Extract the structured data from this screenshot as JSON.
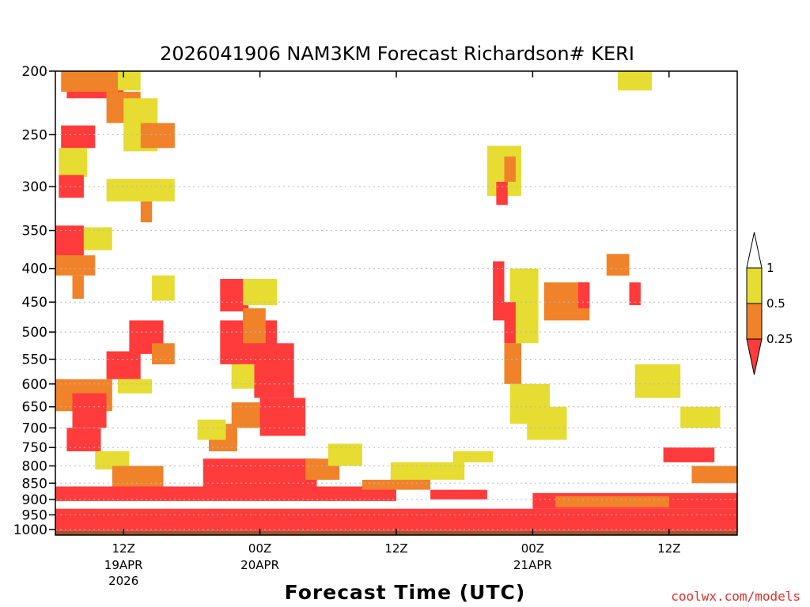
{
  "chart_data": {
    "type": "heatmap",
    "title": "2026041906 NAM3KM Forecast Richardson# KERI",
    "xlabel": "Forecast Time (UTC)",
    "credit": "coolwx.com/models",
    "y_axis": {
      "scale": "log",
      "reversed": true,
      "range": [
        200,
        1020
      ],
      "ticks": [
        200,
        250,
        300,
        350,
        400,
        450,
        500,
        550,
        600,
        650,
        700,
        750,
        800,
        850,
        900,
        950,
        1000
      ],
      "grid": "dotted"
    },
    "x_axis": {
      "range_hours_from_init": [
        0,
        60
      ],
      "ticks": [
        {
          "hour": 6,
          "label": "12Z",
          "date": "19APR",
          "year": "2026"
        },
        {
          "hour": 18,
          "label": "00Z",
          "date": "20APR",
          "year": ""
        },
        {
          "hour": 30,
          "label": "12Z",
          "date": "",
          "year": ""
        },
        {
          "hour": 42,
          "label": "00Z",
          "date": "21APR",
          "year": ""
        },
        {
          "hour": 54,
          "label": "12Z",
          "date": "",
          "year": ""
        }
      ]
    },
    "legend": {
      "placement": "right",
      "labels": [
        "1",
        "0.5",
        "0.25"
      ],
      "bins": [
        {
          "range": "< 0.25",
          "color": "#ff3b3b"
        },
        {
          "range": "0.25 - 0.5",
          "color": "#f0822a"
        },
        {
          "range": "0.5 - 1",
          "color": "#e6dc32"
        },
        {
          "range": "> 1",
          "color": "#ffffff"
        }
      ]
    },
    "colors": {
      "low": "#ff3b3b",
      "mid": "#f0822a",
      "high": "#e6dc32",
      "ground": "#a0522d"
    },
    "ground_pressure": 1005,
    "regions": [
      {
        "level": "low",
        "t0": 1,
        "t1": 6,
        "p0": 205,
        "p1": 220
      },
      {
        "level": "mid",
        "t0": 0.5,
        "t1": 5.5,
        "p0": 200,
        "p1": 215
      },
      {
        "level": "high",
        "t0": 5.5,
        "t1": 7.5,
        "p0": 200,
        "p1": 214
      },
      {
        "level": "mid",
        "t0": 4.5,
        "t1": 7.5,
        "p0": 215,
        "p1": 240
      },
      {
        "level": "high",
        "t0": 6,
        "t1": 9,
        "p0": 220,
        "p1": 265
      },
      {
        "level": "mid",
        "t0": 7.5,
        "t1": 10.5,
        "p0": 240,
        "p1": 262
      },
      {
        "level": "low",
        "t0": 0.5,
        "t1": 3.5,
        "p0": 242,
        "p1": 262
      },
      {
        "level": "high",
        "t0": 0.3,
        "t1": 2.8,
        "p0": 262,
        "p1": 290
      },
      {
        "level": "low",
        "t0": 0.3,
        "t1": 2.5,
        "p0": 288,
        "p1": 312
      },
      {
        "level": "high",
        "t0": 4.5,
        "t1": 10.5,
        "p0": 292,
        "p1": 316
      },
      {
        "level": "mid",
        "t0": 7.5,
        "t1": 8.5,
        "p0": 316,
        "p1": 340
      },
      {
        "level": "low",
        "t0": 0,
        "t1": 2.5,
        "p0": 344,
        "p1": 382
      },
      {
        "level": "mid",
        "t0": 0,
        "t1": 3.5,
        "p0": 382,
        "p1": 410
      },
      {
        "level": "high",
        "t0": 2.5,
        "t1": 5,
        "p0": 346,
        "p1": 375
      },
      {
        "level": "high",
        "t0": 8.5,
        "t1": 10.5,
        "p0": 410,
        "p1": 448
      },
      {
        "level": "mid",
        "t0": 1.5,
        "t1": 2.5,
        "p0": 410,
        "p1": 445
      },
      {
        "level": "low",
        "t0": 6.5,
        "t1": 9.5,
        "p0": 480,
        "p1": 540
      },
      {
        "level": "low",
        "t0": 4.5,
        "t1": 7.5,
        "p0": 535,
        "p1": 590
      },
      {
        "level": "mid",
        "t0": 8.5,
        "t1": 10.5,
        "p0": 520,
        "p1": 560
      },
      {
        "level": "high",
        "t0": 5.5,
        "t1": 8.5,
        "p0": 590,
        "p1": 620
      },
      {
        "level": "mid",
        "t0": 0,
        "t1": 5,
        "p0": 590,
        "p1": 660
      },
      {
        "level": "low",
        "t0": 1.5,
        "t1": 4.5,
        "p0": 620,
        "p1": 700
      },
      {
        "level": "low",
        "t0": 1,
        "t1": 4,
        "p0": 700,
        "p1": 760
      },
      {
        "level": "high",
        "t0": 3.5,
        "t1": 6.5,
        "p0": 760,
        "p1": 810
      },
      {
        "level": "mid",
        "t0": 5,
        "t1": 9.5,
        "p0": 800,
        "p1": 860
      },
      {
        "level": "low",
        "t0": 14.5,
        "t1": 17,
        "p0": 415,
        "p1": 465
      },
      {
        "level": "high",
        "t0": 16.5,
        "t1": 19.5,
        "p0": 415,
        "p1": 455
      },
      {
        "level": "low",
        "t0": 14.5,
        "t1": 19.5,
        "p0": 480,
        "p1": 560
      },
      {
        "level": "mid",
        "t0": 16.5,
        "t1": 18.5,
        "p0": 460,
        "p1": 520
      },
      {
        "level": "low",
        "t0": 17.5,
        "t1": 21,
        "p0": 520,
        "p1": 630
      },
      {
        "level": "high",
        "t0": 15.5,
        "t1": 17.5,
        "p0": 560,
        "p1": 610
      },
      {
        "level": "mid",
        "t0": 15.5,
        "t1": 19,
        "p0": 640,
        "p1": 700
      },
      {
        "level": "low",
        "t0": 18,
        "t1": 22,
        "p0": 630,
        "p1": 720
      },
      {
        "level": "mid",
        "t0": 13.5,
        "t1": 16,
        "p0": 690,
        "p1": 760
      },
      {
        "level": "high",
        "t0": 12.5,
        "t1": 15,
        "p0": 680,
        "p1": 730
      },
      {
        "level": "low",
        "t0": 13,
        "t1": 23,
        "p0": 780,
        "p1": 860
      },
      {
        "level": "mid",
        "t0": 22,
        "t1": 25,
        "p0": 780,
        "p1": 840
      },
      {
        "level": "high",
        "t0": 24,
        "t1": 27,
        "p0": 740,
        "p1": 800
      },
      {
        "level": "low",
        "t0": 0,
        "t1": 30,
        "p0": 860,
        "p1": 905
      },
      {
        "level": "high",
        "t0": 29.5,
        "t1": 36,
        "p0": 790,
        "p1": 840
      },
      {
        "level": "mid",
        "t0": 27,
        "t1": 33,
        "p0": 840,
        "p1": 870
      },
      {
        "level": "low",
        "t0": 33,
        "t1": 38,
        "p0": 870,
        "p1": 900
      },
      {
        "level": "high",
        "t0": 35,
        "t1": 38.5,
        "p0": 760,
        "p1": 790
      },
      {
        "level": "low",
        "t0": 38.5,
        "t1": 39.5,
        "p0": 390,
        "p1": 480
      },
      {
        "level": "high",
        "t0": 38,
        "t1": 41,
        "p0": 260,
        "p1": 310
      },
      {
        "level": "mid",
        "t0": 39.5,
        "t1": 40.5,
        "p0": 270,
        "p1": 295
      },
      {
        "level": "low",
        "t0": 38.8,
        "t1": 39.8,
        "p0": 295,
        "p1": 320
      },
      {
        "level": "high",
        "t0": 40,
        "t1": 42.5,
        "p0": 400,
        "p1": 520
      },
      {
        "level": "low",
        "t0": 39.5,
        "t1": 40.5,
        "p0": 450,
        "p1": 520
      },
      {
        "level": "mid",
        "t0": 39.5,
        "t1": 41,
        "p0": 520,
        "p1": 600
      },
      {
        "level": "high",
        "t0": 40,
        "t1": 43.5,
        "p0": 600,
        "p1": 690
      },
      {
        "level": "high",
        "t0": 41.5,
        "t1": 45,
        "p0": 650,
        "p1": 730
      },
      {
        "level": "mid",
        "t0": 43,
        "t1": 47,
        "p0": 420,
        "p1": 480
      },
      {
        "level": "low",
        "t0": 46,
        "t1": 47,
        "p0": 420,
        "p1": 460
      },
      {
        "level": "mid",
        "t0": 48.5,
        "t1": 50.5,
        "p0": 380,
        "p1": 410
      },
      {
        "level": "low",
        "t0": 50.5,
        "t1": 51.5,
        "p0": 420,
        "p1": 455
      },
      {
        "level": "high",
        "t0": 49.5,
        "t1": 52.5,
        "p0": 200,
        "p1": 214
      },
      {
        "level": "high",
        "t0": 51,
        "t1": 55,
        "p0": 560,
        "p1": 630
      },
      {
        "level": "high",
        "t0": 55,
        "t1": 58.5,
        "p0": 650,
        "p1": 700
      },
      {
        "level": "low",
        "t0": 53.5,
        "t1": 58,
        "p0": 750,
        "p1": 790
      },
      {
        "level": "mid",
        "t0": 56,
        "t1": 60,
        "p0": 800,
        "p1": 850
      },
      {
        "level": "low",
        "t0": 42,
        "t1": 60,
        "p0": 880,
        "p1": 930
      },
      {
        "level": "mid",
        "t0": 44,
        "t1": 54,
        "p0": 890,
        "p1": 925
      },
      {
        "level": "low",
        "t0": 0,
        "t1": 60,
        "p0": 930,
        "p1": 1005
      }
    ]
  }
}
